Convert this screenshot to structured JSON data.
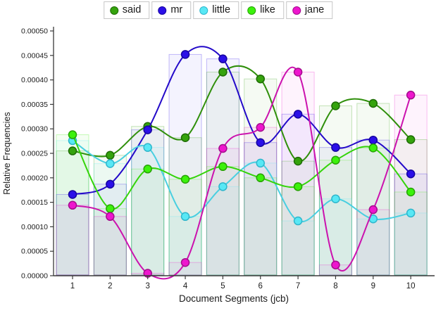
{
  "legend": {
    "items": [
      "said",
      "mr",
      "little",
      "like",
      "jane"
    ]
  },
  "chart_data": {
    "type": "line",
    "title": "",
    "xlabel": "Document Segments (jcb)",
    "ylabel": "Relative Frequencies",
    "x": [
      1,
      2,
      3,
      4,
      5,
      6,
      7,
      8,
      9,
      10
    ],
    "x_tick_labels": [
      "1",
      "2",
      "3",
      "4",
      "5",
      "6",
      "7",
      "8",
      "9",
      "10"
    ],
    "y_tick_labels": [
      "0.00000",
      "0.00005",
      "0.00010",
      "0.00015",
      "0.00020",
      "0.00025",
      "0.00030",
      "0.00035",
      "0.00040",
      "0.00045",
      "0.00050"
    ],
    "ylim": [
      0,
      0.0005
    ],
    "y_tick_step": 5e-05,
    "grid": false,
    "legend_position": "top",
    "smooth_lines": true,
    "background_bars": true,
    "series": [
      {
        "name": "said",
        "color": "#35a30d",
        "line_color": "#2f8f0b",
        "point_border": "#1d6b04",
        "values": [
          0.000255,
          0.000246,
          0.000305,
          0.000282,
          0.000416,
          0.000402,
          0.000234,
          0.000347,
          0.000352,
          0.000278
        ]
      },
      {
        "name": "mr",
        "color": "#2b0fe8",
        "line_color": "#2309c9",
        "point_border": "#1604a0",
        "values": [
          0.000166,
          0.000187,
          0.000298,
          0.000452,
          0.000443,
          0.000272,
          0.00033,
          0.000262,
          0.000277,
          0.000208
        ]
      },
      {
        "name": "little",
        "color": "#58e8f5",
        "line_color": "#49cfe0",
        "point_border": "#2fb6cc",
        "values": [
          0.000276,
          0.000229,
          0.000262,
          0.000121,
          0.000182,
          0.00023,
          0.000112,
          0.000157,
          0.000116,
          0.000128
        ]
      },
      {
        "name": "like",
        "color": "#3cf20c",
        "line_color": "#34d40a",
        "point_border": "#27a205",
        "values": [
          0.000288,
          0.000137,
          0.000218,
          0.000197,
          0.000223,
          0.0002,
          0.000182,
          0.000236,
          0.000261,
          0.000171
        ]
      },
      {
        "name": "jane",
        "color": "#ee16ce",
        "line_color": "#cb12ae",
        "point_border": "#a30d8c",
        "values": [
          0.000144,
          0.000121,
          5e-06,
          2.7e-05,
          0.00026,
          0.000303,
          0.000416,
          2.2e-05,
          0.000135,
          0.000369
        ]
      }
    ]
  }
}
